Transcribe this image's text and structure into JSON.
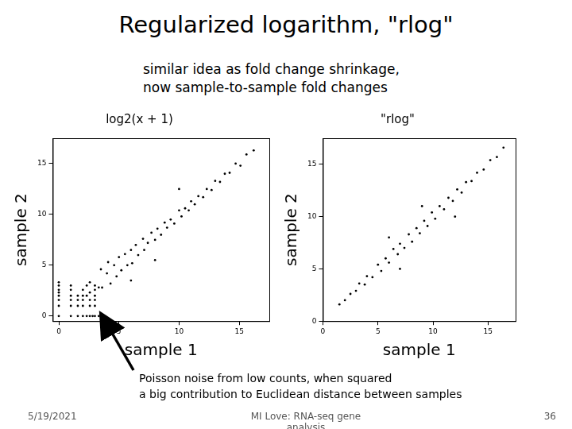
{
  "slide": {
    "title": "Regularized logarithm, \"rlog\"",
    "subtitle": [
      "similar idea as fold change shrinkage,",
      "now sample-to-sample fold changes"
    ],
    "annotation": [
      "Poisson noise from low counts, when squared",
      "a big contribution to Euclidean distance between samples"
    ],
    "footer": {
      "date": "5/19/2021",
      "author": "MI Love: RNA-seq gene analysis",
      "page": "36"
    }
  },
  "chart_data": [
    {
      "type": "scatter",
      "title": "log2(x + 1)",
      "x_label": "sample 1",
      "y_label": "sample 2",
      "color": "#000000",
      "marker": "point",
      "grid": false,
      "xlim": [
        -0.5,
        17.5
      ],
      "ylim": [
        -0.5,
        17.5
      ],
      "xticks": [
        0,
        5,
        10,
        15
      ],
      "yticks": [
        0,
        5,
        10,
        15
      ],
      "x": [
        0,
        1,
        1.58,
        2,
        2.32,
        2.58,
        2.81,
        3,
        3.32,
        0,
        0,
        0,
        0,
        0,
        0,
        0,
        1,
        1.58,
        2,
        2.58,
        3,
        1,
        1,
        1,
        1,
        1.58,
        2,
        2.58,
        3,
        1.58,
        2,
        2.32,
        3,
        2,
        2.58,
        3,
        2.32,
        3,
        2.58,
        3.32,
        3.5,
        3.6,
        4,
        4.1,
        4.3,
        4.6,
        4.8,
        5,
        5.2,
        5.5,
        5.7,
        6,
        6.1,
        6.4,
        6.6,
        7,
        7.1,
        7.4,
        7.7,
        8,
        8.2,
        8.5,
        8.8,
        9,
        9.3,
        9.6,
        10,
        10.2,
        10.5,
        10.8,
        11,
        11.3,
        11.6,
        12,
        12.3,
        12.7,
        13,
        13.4,
        13.8,
        14.2,
        14.7,
        15.1,
        15.6,
        16.2,
        6,
        8,
        10
      ],
      "values": [
        0,
        0,
        0,
        0,
        0,
        0,
        0,
        0,
        0,
        1,
        1.58,
        2,
        2.32,
        2.58,
        3,
        3.32,
        1,
        1,
        1,
        1,
        1,
        1.58,
        2,
        2.58,
        3,
        1.58,
        1.58,
        1.58,
        1.58,
        2,
        2,
        2,
        2,
        2.58,
        2.32,
        2.58,
        3,
        3,
        3.32,
        2.81,
        4.6,
        2.8,
        4.2,
        5.3,
        3.2,
        5,
        3.9,
        5.8,
        4.5,
        6.1,
        5,
        6.5,
        5.2,
        7,
        6,
        7.6,
        6.5,
        7.2,
        8.2,
        7.5,
        8.6,
        8,
        9.2,
        8.7,
        9.5,
        9.1,
        10.4,
        9.8,
        10.6,
        10.4,
        11.3,
        11,
        11.8,
        11.7,
        12.5,
        12.4,
        13.3,
        13.2,
        14,
        14.1,
        15,
        14.8,
        15.9,
        16.3,
        3.5,
        5.5,
        12.5
      ]
    },
    {
      "type": "scatter",
      "title": "\"rlog\"",
      "x_label": "sample 1",
      "y_label": "sample 2",
      "color": "#000000",
      "marker": "point",
      "grid": false,
      "xlim": [
        0,
        17.5
      ],
      "ylim": [
        0,
        17.5
      ],
      "xticks": [
        0,
        5,
        10,
        15
      ],
      "yticks": [
        0,
        5,
        10,
        15
      ],
      "x": [
        1.5,
        2,
        2.5,
        3,
        3.3,
        3.8,
        4,
        4.5,
        5,
        5.3,
        5.7,
        6,
        6.4,
        6.8,
        7,
        7.4,
        7.8,
        8.1,
        8.5,
        8.8,
        9.2,
        9.5,
        9.9,
        10.2,
        10.6,
        11,
        11.4,
        11.8,
        12.2,
        12.6,
        13,
        13.5,
        14,
        14.6,
        15.2,
        15.8,
        16.4,
        6,
        7,
        9,
        12
      ],
      "values": [
        1.6,
        2,
        2.6,
        2.9,
        3.6,
        3.5,
        4.3,
        4.2,
        5.4,
        4.8,
        6,
        5.6,
        6.9,
        6.4,
        7.4,
        7,
        8.3,
        7.6,
        8.9,
        8.4,
        9.6,
        9.1,
        10.4,
        9.8,
        11,
        10.7,
        11.8,
        11.5,
        12.6,
        12.3,
        13.3,
        13.4,
        14.2,
        14.5,
        15.4,
        15.7,
        16.6,
        8,
        5,
        11,
        10
      ]
    }
  ]
}
